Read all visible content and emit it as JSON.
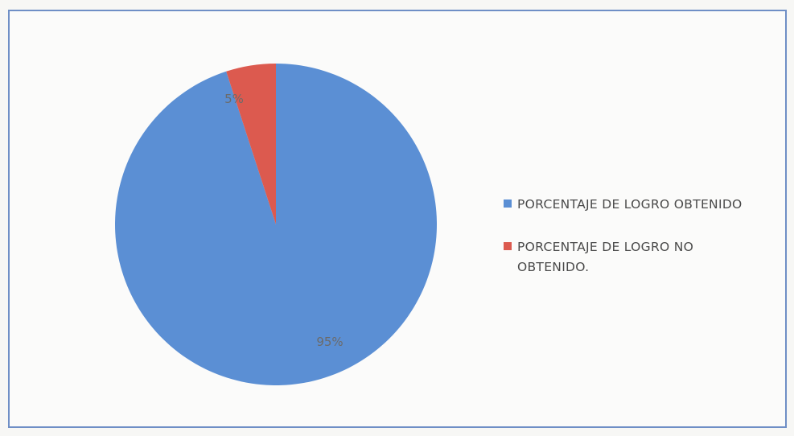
{
  "chart_data": {
    "type": "pie",
    "slices": [
      {
        "label": "PORCENTAJE DE LOGRO OBTENIDO",
        "value": 95,
        "data_label": "95%",
        "color": "#5b8fd4"
      },
      {
        "label": "PORCENTAJE DE LOGRO NO OBTENIDO.",
        "value": 5,
        "data_label": "5%",
        "color": "#dc5a4f"
      }
    ],
    "legend_position": "right"
  },
  "legend": {
    "items": [
      {
        "label": "PORCENTAJE DE LOGRO OBTENIDO",
        "color": "#5b8fd4"
      },
      {
        "label": "PORCENTAJE DE LOGRO NO OBTENIDO.",
        "color": "#dc5a4f"
      }
    ]
  },
  "colors": {
    "frame_border": "#6f8fc6"
  }
}
